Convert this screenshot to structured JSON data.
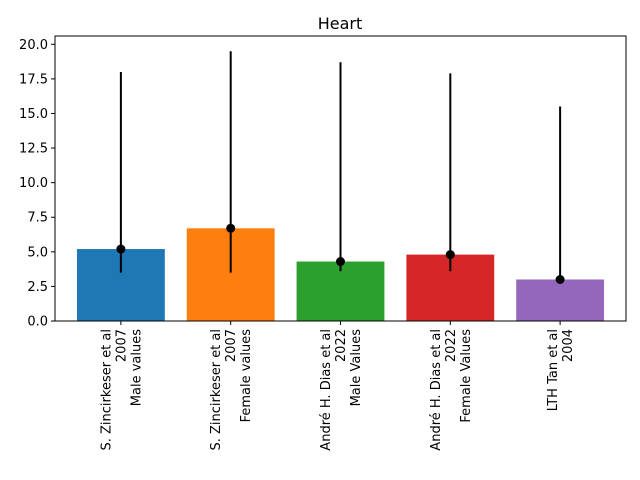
{
  "chart_data": {
    "type": "bar",
    "title": "Heart",
    "categories": [
      [
        "S. Zincirkeser et al",
        "2007",
        "Male values"
      ],
      [
        "S. Zincirkeser et al",
        "2007",
        "Female values"
      ],
      [
        "André H. Dias et al",
        "2022",
        "Male Values"
      ],
      [
        "André H. Dias et al",
        "2022",
        "Female Values"
      ],
      [
        "LTH Tan et al",
        "2004"
      ]
    ],
    "values": [
      5.2,
      6.7,
      4.3,
      4.8,
      3.0
    ],
    "error_low": [
      3.5,
      3.5,
      3.6,
      3.6,
      3.0
    ],
    "error_high": [
      18.0,
      19.5,
      18.7,
      17.9,
      15.5
    ],
    "colors": [
      "#1f77b4",
      "#ff7f0e",
      "#2ca02c",
      "#d62728",
      "#9467bd"
    ],
    "ylim": [
      0,
      20.6
    ],
    "yticks": [
      "0.0",
      "2.5",
      "5.0",
      "7.5",
      "10.0",
      "12.5",
      "15.0",
      "17.5",
      "20.0"
    ],
    "xlabel": "",
    "ylabel": "",
    "grid": false
  }
}
